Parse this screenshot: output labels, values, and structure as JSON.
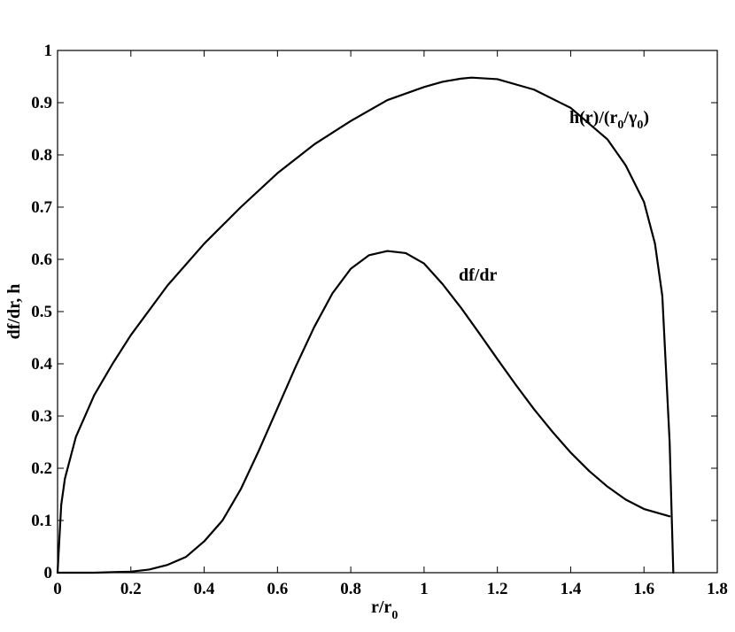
{
  "chart_data": {
    "type": "line",
    "title": "",
    "xlabel": "r/r0",
    "xlabel_main": "r/r",
    "xlabel_sub": "0",
    "ylabel": "df/dr, h",
    "xlim": [
      0,
      1.8
    ],
    "ylim": [
      0,
      1
    ],
    "xticks": [
      0,
      0.2,
      0.4,
      0.6,
      0.8,
      1,
      1.2,
      1.4,
      1.6,
      1.8
    ],
    "xtick_labels": [
      "0",
      "0.2",
      "0.4",
      "0.6",
      "0.8",
      "1",
      "1.2",
      "1.4",
      "1.6",
      "1.8"
    ],
    "yticks": [
      0,
      0.1,
      0.2,
      0.3,
      0.4,
      0.5,
      0.6,
      0.7,
      0.8,
      0.9,
      1
    ],
    "ytick_labels": [
      "0",
      "0.1",
      "0.2",
      "0.3",
      "0.4",
      "0.5",
      "0.6",
      "0.7",
      "0.8",
      "0.9",
      "1"
    ],
    "grid": false,
    "series": [
      {
        "name": "h(r)/(r0/γ0)",
        "label_parts": {
          "p1": "h(r)/(r",
          "s1": "0",
          "p2": "/γ",
          "s2": "0",
          "p3": ")"
        },
        "x": [
          0,
          0.01,
          0.02,
          0.05,
          0.1,
          0.15,
          0.2,
          0.3,
          0.4,
          0.5,
          0.6,
          0.7,
          0.8,
          0.9,
          1.0,
          1.05,
          1.1,
          1.13,
          1.2,
          1.3,
          1.4,
          1.5,
          1.55,
          1.6,
          1.63,
          1.65,
          1.67,
          1.68
        ],
        "y": [
          0,
          0.13,
          0.18,
          0.26,
          0.34,
          0.4,
          0.455,
          0.55,
          0.63,
          0.7,
          0.765,
          0.82,
          0.865,
          0.905,
          0.93,
          0.94,
          0.946,
          0.948,
          0.945,
          0.925,
          0.89,
          0.83,
          0.78,
          0.71,
          0.63,
          0.53,
          0.25,
          0
        ]
      },
      {
        "name": "df/dr",
        "label_parts": {
          "p1": "df/dr"
        },
        "x": [
          0,
          0.1,
          0.2,
          0.25,
          0.3,
          0.35,
          0.4,
          0.45,
          0.5,
          0.55,
          0.6,
          0.65,
          0.7,
          0.75,
          0.8,
          0.85,
          0.9,
          0.95,
          1.0,
          1.05,
          1.1,
          1.15,
          1.2,
          1.25,
          1.3,
          1.35,
          1.4,
          1.45,
          1.5,
          1.55,
          1.6,
          1.67
        ],
        "y": [
          0,
          0,
          0.002,
          0.006,
          0.015,
          0.03,
          0.06,
          0.1,
          0.16,
          0.235,
          0.315,
          0.395,
          0.47,
          0.535,
          0.582,
          0.608,
          0.616,
          0.612,
          0.592,
          0.553,
          0.508,
          0.459,
          0.409,
          0.36,
          0.313,
          0.27,
          0.23,
          0.195,
          0.165,
          0.14,
          0.122,
          0.108
        ]
      }
    ],
    "annotations": [
      {
        "series": 0,
        "x": 1.375,
        "y": 0.86
      },
      {
        "series": 1,
        "x": 1.085,
        "y": 0.555
      }
    ]
  }
}
